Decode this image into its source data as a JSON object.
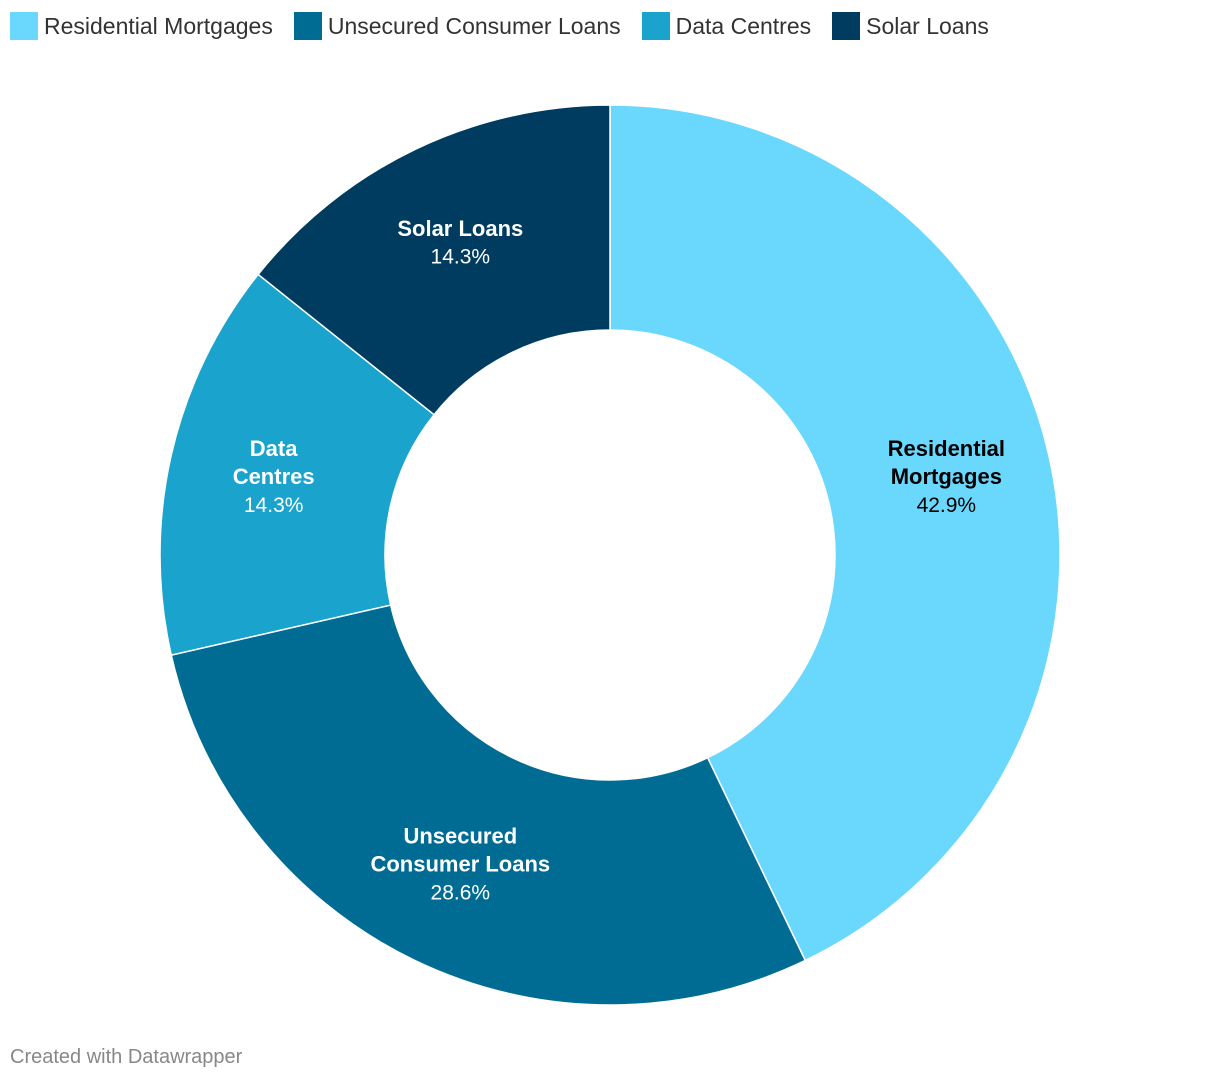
{
  "chart_data": {
    "type": "pie",
    "variant": "donut",
    "categories": [
      "Residential Mortgages",
      "Unsecured Consumer Loans",
      "Data Centres",
      "Solar Loans"
    ],
    "values": [
      42.9,
      28.6,
      14.3,
      14.3
    ],
    "unit": "%",
    "colors": [
      "#6ad7fd",
      "#006c94",
      "#1aa3cc",
      "#003c60"
    ],
    "label_text_colors": [
      "#000000",
      "#ffffff",
      "#ffffff",
      "#ffffff"
    ],
    "slice_labels": [
      {
        "name_lines": [
          "Residential",
          "Mortgages"
        ],
        "value_text": "42.9%"
      },
      {
        "name_lines": [
          "Unsecured",
          "Consumer Loans"
        ],
        "value_text": "28.6%"
      },
      {
        "name_lines": [
          "Data",
          "Centres"
        ],
        "value_text": "14.3%"
      },
      {
        "name_lines": [
          "Solar Loans"
        ],
        "value_text": "14.3%"
      }
    ],
    "legend": [
      {
        "label": "Residential Mortgages",
        "color": "#6ad7fd"
      },
      {
        "label": "Unsecured Consumer Loans",
        "color": "#006c94"
      },
      {
        "label": "Data Centres",
        "color": "#1aa3cc"
      },
      {
        "label": "Solar Loans",
        "color": "#003c60"
      }
    ],
    "legend_position": "top-left",
    "start_direction": "12 o'clock, clockwise"
  },
  "footer": {
    "credit": "Created with Datawrapper"
  }
}
